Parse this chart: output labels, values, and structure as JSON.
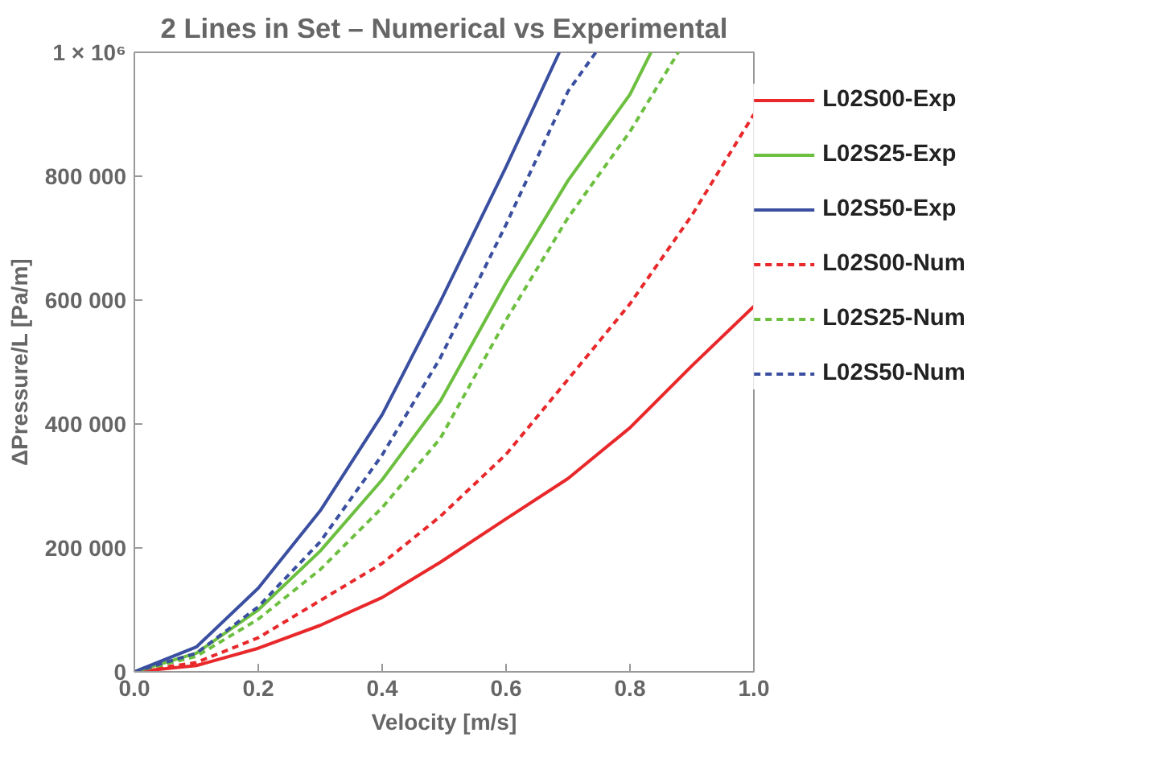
{
  "chart_data": {
    "type": "line",
    "title": "2 Lines in Set – Numerical vs Experimental",
    "xlabel": "Velocity [m/s]",
    "ylabel": "ΔPressure/L [Pa/m]",
    "xlim": [
      0,
      1
    ],
    "ylim": [
      0,
      1000000
    ],
    "xticks": [
      {
        "value": 0,
        "label": "0.0"
      },
      0.2,
      0.4,
      0.6,
      0.8,
      {
        "value": 1,
        "label": "1.0"
      }
    ],
    "yticks": [
      0,
      {
        "value": 200000,
        "label": "200 000"
      },
      {
        "value": 400000,
        "label": "400 000"
      },
      {
        "value": 600000,
        "label": "600 000"
      },
      {
        "value": 800000,
        "label": "800 000"
      },
      {
        "value": 1000000,
        "label": "1 × 10⁶"
      }
    ],
    "grid": false,
    "legend": "right",
    "marker": "none",
    "series": [
      {
        "name": "L02S00-Exp",
        "color": "#e8282b",
        "line_style": "solid",
        "x": [
          0,
          0.1,
          0.2,
          0.3,
          0.4,
          0.494,
          0.6,
          0.7,
          0.8,
          0.9,
          1.0
        ],
        "values": [
          0,
          10000,
          38000,
          75000,
          120000,
          177000,
          247000,
          312000,
          394000,
          494000,
          590000
        ]
      },
      {
        "name": "L02S25-Exp",
        "color": "#6cbf3f",
        "line_style": "solid",
        "x": [
          0,
          0.1,
          0.2,
          0.3,
          0.4,
          0.494,
          0.6,
          0.7,
          0.8,
          0.834
        ],
        "values": [
          0,
          30000,
          100000,
          195000,
          310000,
          437000,
          628000,
          793000,
          932000,
          1000000
        ]
      },
      {
        "name": "L02S50-Exp",
        "color": "#3a4fa0",
        "line_style": "solid",
        "x": [
          0,
          0.1,
          0.2,
          0.3,
          0.4,
          0.494,
          0.6,
          0.686
        ],
        "values": [
          0,
          40000,
          135000,
          260000,
          415000,
          598000,
          815000,
          1000000
        ]
      },
      {
        "name": "L02S00-Num",
        "color": "#e8282b",
        "line_style": "dashed",
        "x": [
          0,
          0.1,
          0.2,
          0.3,
          0.4,
          0.494,
          0.6,
          0.7,
          0.8,
          0.9,
          1.0
        ],
        "values": [
          0,
          15000,
          55000,
          115000,
          175000,
          251000,
          351000,
          472000,
          594000,
          737000,
          900000
        ]
      },
      {
        "name": "L02S25-Num",
        "color": "#6cbf3f",
        "line_style": "dashed",
        "x": [
          0,
          0.1,
          0.2,
          0.3,
          0.4,
          0.494,
          0.6,
          0.7,
          0.8,
          0.878
        ],
        "values": [
          0,
          25000,
          85000,
          165000,
          265000,
          377000,
          568000,
          733000,
          872000,
          1000000
        ]
      },
      {
        "name": "L02S50-Num",
        "color": "#3a4fa0",
        "line_style": "dashed",
        "x": [
          0,
          0.1,
          0.2,
          0.3,
          0.4,
          0.494,
          0.6,
          0.7,
          0.745
        ],
        "values": [
          0,
          30000,
          105000,
          210000,
          350000,
          507000,
          722000,
          937000,
          1000000
        ]
      }
    ]
  }
}
